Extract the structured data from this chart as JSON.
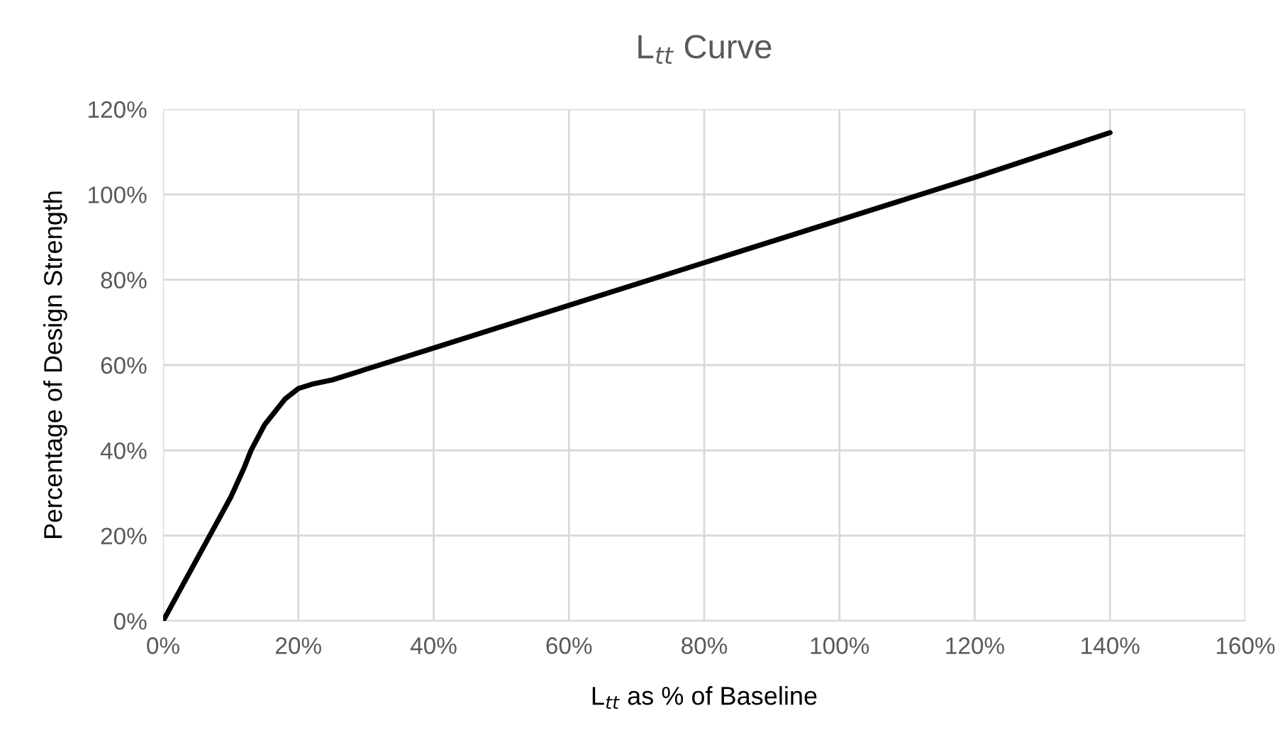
{
  "chart_data": {
    "type": "line",
    "title": "L$_{tt}$ Curve",
    "xlabel": "L$_{tt}$ as % of Baseline",
    "ylabel": "Percentage of Design Strength",
    "x": [
      0,
      5,
      10,
      12,
      13,
      15,
      17,
      18,
      20,
      21,
      22,
      25,
      40,
      60,
      80,
      100,
      120,
      140
    ],
    "series": [
      {
        "color": "#000000",
        "values": [
          0,
          14.5,
          29,
          36,
          40,
          46,
          50,
          52,
          54.5,
          55,
          55.5,
          56.5,
          64,
          74,
          84,
          94,
          104,
          114.5
        ]
      }
    ],
    "xlim": [
      0,
      160
    ],
    "ylim": [
      0,
      120
    ],
    "xticks": [
      {
        "value": 0,
        "label": "0%"
      },
      {
        "value": 20,
        "label": "20%"
      },
      {
        "value": 40,
        "label": "40%"
      },
      {
        "value": 60,
        "label": "60%"
      },
      {
        "value": 80,
        "label": "80%"
      },
      {
        "value": 100,
        "label": "100%"
      },
      {
        "value": 120,
        "label": "120%"
      },
      {
        "value": 140,
        "label": "140%"
      },
      {
        "value": 160,
        "label": "160%"
      }
    ],
    "yticks": [
      {
        "value": 0,
        "label": "0%"
      },
      {
        "value": 20,
        "label": "20%"
      },
      {
        "value": 40,
        "label": "40%"
      },
      {
        "value": 60,
        "label": "60%"
      },
      {
        "value": 80,
        "label": "80%"
      },
      {
        "value": 100,
        "label": "100%"
      },
      {
        "value": 120,
        "label": "120%"
      }
    ],
    "grid": true,
    "marker": "none",
    "line_style": "solid",
    "legend": false
  }
}
